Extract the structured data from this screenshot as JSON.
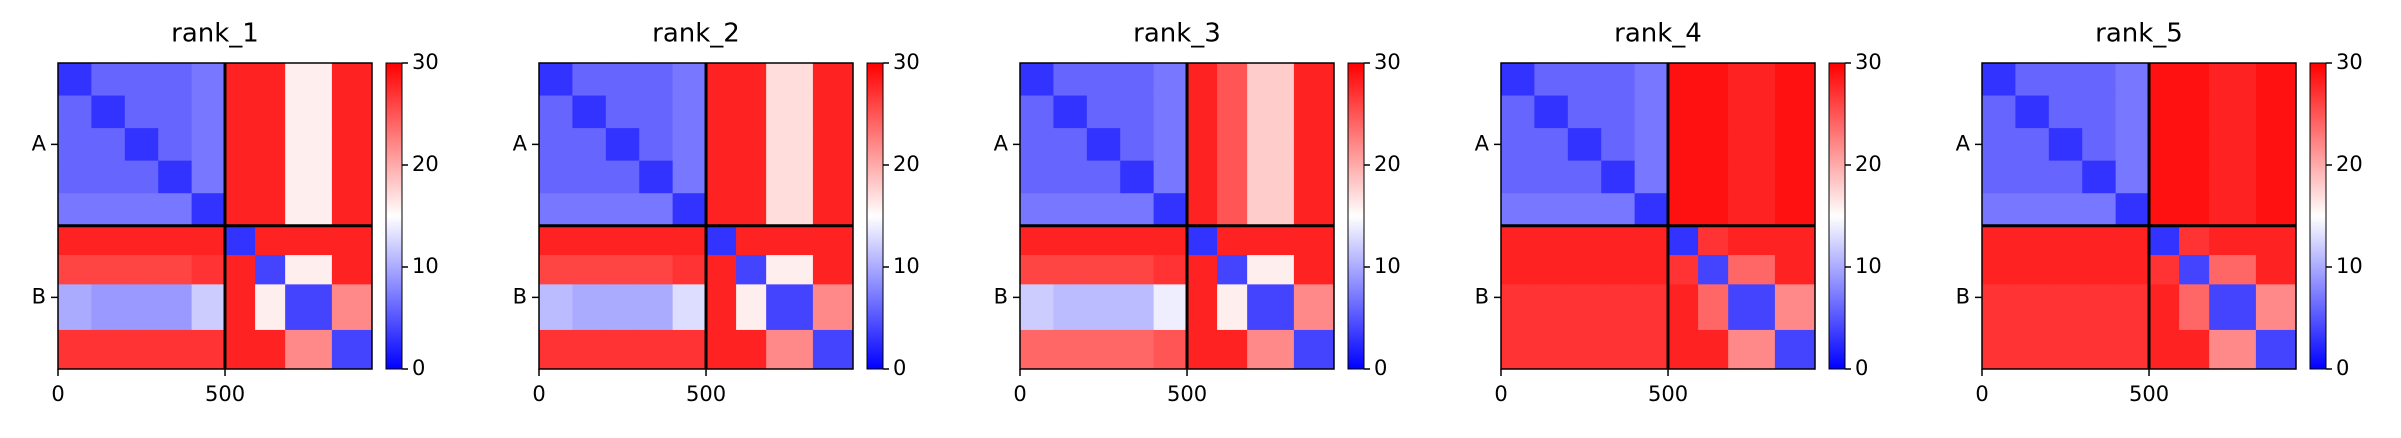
{
  "chart_data": [
    {
      "type": "heatmap",
      "title": "rank_1",
      "colormap": "bwr",
      "clim": [
        0,
        30
      ],
      "cticks": [
        0,
        10,
        20,
        30
      ],
      "edges": [
        0,
        100,
        200,
        300,
        400,
        500,
        590,
        680,
        820,
        940
      ],
      "xlim": [
        0,
        940
      ],
      "ylim": [
        940,
        0
      ],
      "xticks": [
        0,
        500
      ],
      "yticks": [
        {
          "value": 250,
          "label": "A"
        },
        {
          "value": 720,
          "label": "B"
        }
      ],
      "boundaries": [
        500
      ],
      "values": [
        [
          3,
          6,
          6,
          6,
          7,
          28,
          28,
          16,
          28
        ],
        [
          6,
          3,
          6,
          6,
          7,
          28,
          28,
          16,
          28
        ],
        [
          6,
          6,
          3,
          6,
          7,
          28,
          28,
          16,
          28
        ],
        [
          6,
          6,
          6,
          3,
          7,
          28,
          28,
          16,
          28
        ],
        [
          7,
          7,
          7,
          7,
          3,
          28,
          28,
          16,
          28
        ],
        [
          28,
          28,
          28,
          28,
          28,
          3,
          28,
          28,
          28
        ],
        [
          26,
          26,
          26,
          26,
          27,
          28,
          4,
          16,
          28
        ],
        [
          10,
          9,
          9,
          9,
          12,
          28,
          16,
          4,
          22
        ],
        [
          27,
          27,
          27,
          27,
          27,
          28,
          28,
          22,
          4
        ]
      ]
    },
    {
      "type": "heatmap",
      "title": "rank_2",
      "colormap": "bwr",
      "clim": [
        0,
        30
      ],
      "cticks": [
        0,
        10,
        20,
        30
      ],
      "edges": [
        0,
        100,
        200,
        300,
        400,
        500,
        590,
        680,
        820,
        940
      ],
      "xlim": [
        0,
        940
      ],
      "ylim": [
        940,
        0
      ],
      "xticks": [
        0,
        500
      ],
      "yticks": [
        {
          "value": 250,
          "label": "A"
        },
        {
          "value": 720,
          "label": "B"
        }
      ],
      "boundaries": [
        500
      ],
      "values": [
        [
          3,
          6,
          6,
          6,
          7,
          28,
          28,
          17,
          28
        ],
        [
          6,
          3,
          6,
          6,
          7,
          28,
          28,
          17,
          28
        ],
        [
          6,
          6,
          3,
          6,
          7,
          28,
          28,
          17,
          28
        ],
        [
          6,
          6,
          6,
          3,
          7,
          28,
          28,
          17,
          28
        ],
        [
          7,
          7,
          7,
          7,
          3,
          28,
          28,
          17,
          28
        ],
        [
          28,
          28,
          28,
          28,
          28,
          3,
          28,
          28,
          28
        ],
        [
          26,
          26,
          26,
          26,
          27,
          28,
          4,
          16,
          28
        ],
        [
          11,
          10,
          10,
          10,
          13,
          28,
          16,
          4,
          22
        ],
        [
          27,
          27,
          27,
          27,
          27,
          28,
          28,
          22,
          4
        ]
      ]
    },
    {
      "type": "heatmap",
      "title": "rank_3",
      "colormap": "bwr",
      "clim": [
        0,
        30
      ],
      "cticks": [
        0,
        10,
        20,
        30
      ],
      "edges": [
        0,
        100,
        200,
        300,
        400,
        500,
        590,
        680,
        820,
        940
      ],
      "xlim": [
        0,
        940
      ],
      "ylim": [
        940,
        0
      ],
      "xticks": [
        0,
        500
      ],
      "yticks": [
        {
          "value": 250,
          "label": "A"
        },
        {
          "value": 720,
          "label": "B"
        }
      ],
      "boundaries": [
        500
      ],
      "values": [
        [
          3,
          6,
          6,
          6,
          7,
          28,
          25,
          18,
          28
        ],
        [
          6,
          3,
          6,
          6,
          7,
          28,
          25,
          18,
          28
        ],
        [
          6,
          6,
          3,
          6,
          7,
          28,
          25,
          18,
          28
        ],
        [
          6,
          6,
          6,
          3,
          7,
          28,
          25,
          18,
          28
        ],
        [
          7,
          7,
          7,
          7,
          3,
          28,
          25,
          18,
          28
        ],
        [
          28,
          28,
          28,
          28,
          28,
          3,
          28,
          28,
          28
        ],
        [
          26,
          26,
          26,
          26,
          27,
          28,
          4,
          16,
          28
        ],
        [
          12,
          11,
          11,
          11,
          14,
          28,
          16,
          4,
          22
        ],
        [
          24,
          24,
          24,
          24,
          25,
          28,
          28,
          22,
          4
        ]
      ]
    },
    {
      "type": "heatmap",
      "title": "rank_4",
      "colormap": "bwr",
      "clim": [
        0,
        30
      ],
      "cticks": [
        0,
        10,
        20,
        30
      ],
      "edges": [
        0,
        100,
        200,
        300,
        400,
        500,
        590,
        680,
        820,
        940
      ],
      "xlim": [
        0,
        940
      ],
      "ylim": [
        940,
        0
      ],
      "xticks": [
        0,
        500
      ],
      "yticks": [
        {
          "value": 250,
          "label": "A"
        },
        {
          "value": 720,
          "label": "B"
        }
      ],
      "boundaries": [
        500
      ],
      "values": [
        [
          3,
          6,
          6,
          6,
          7,
          29,
          29,
          28,
          29
        ],
        [
          6,
          3,
          6,
          6,
          7,
          29,
          29,
          28,
          29
        ],
        [
          6,
          6,
          3,
          6,
          7,
          29,
          29,
          28,
          29
        ],
        [
          6,
          6,
          6,
          3,
          7,
          29,
          29,
          28,
          29
        ],
        [
          7,
          7,
          7,
          7,
          3,
          29,
          29,
          28,
          29
        ],
        [
          28,
          28,
          28,
          28,
          28,
          3,
          27,
          28,
          28
        ],
        [
          28,
          28,
          28,
          28,
          28,
          27,
          4,
          24,
          28
        ],
        [
          27,
          27,
          27,
          27,
          27,
          28,
          24,
          4,
          22
        ],
        [
          27,
          27,
          27,
          27,
          27,
          28,
          28,
          22,
          4
        ]
      ]
    },
    {
      "type": "heatmap",
      "title": "rank_5",
      "colormap": "bwr",
      "clim": [
        0,
        30
      ],
      "cticks": [
        0,
        10,
        20,
        30
      ],
      "edges": [
        0,
        100,
        200,
        300,
        400,
        500,
        590,
        680,
        820,
        940
      ],
      "xlim": [
        0,
        940
      ],
      "ylim": [
        940,
        0
      ],
      "xticks": [
        0,
        500
      ],
      "yticks": [
        {
          "value": 250,
          "label": "A"
        },
        {
          "value": 720,
          "label": "B"
        }
      ],
      "boundaries": [
        500
      ],
      "values": [
        [
          3,
          6,
          6,
          6,
          7,
          29,
          29,
          28,
          29
        ],
        [
          6,
          3,
          6,
          6,
          7,
          29,
          29,
          28,
          29
        ],
        [
          6,
          6,
          3,
          6,
          7,
          29,
          29,
          28,
          29
        ],
        [
          6,
          6,
          6,
          3,
          7,
          29,
          29,
          28,
          29
        ],
        [
          7,
          7,
          7,
          7,
          3,
          29,
          29,
          28,
          29
        ],
        [
          28,
          28,
          28,
          28,
          28,
          3,
          27,
          28,
          28
        ],
        [
          28,
          28,
          28,
          28,
          28,
          27,
          4,
          24,
          28
        ],
        [
          27,
          27,
          27,
          27,
          27,
          28,
          24,
          4,
          22
        ],
        [
          27,
          27,
          27,
          27,
          27,
          28,
          28,
          22,
          4
        ]
      ]
    }
  ]
}
